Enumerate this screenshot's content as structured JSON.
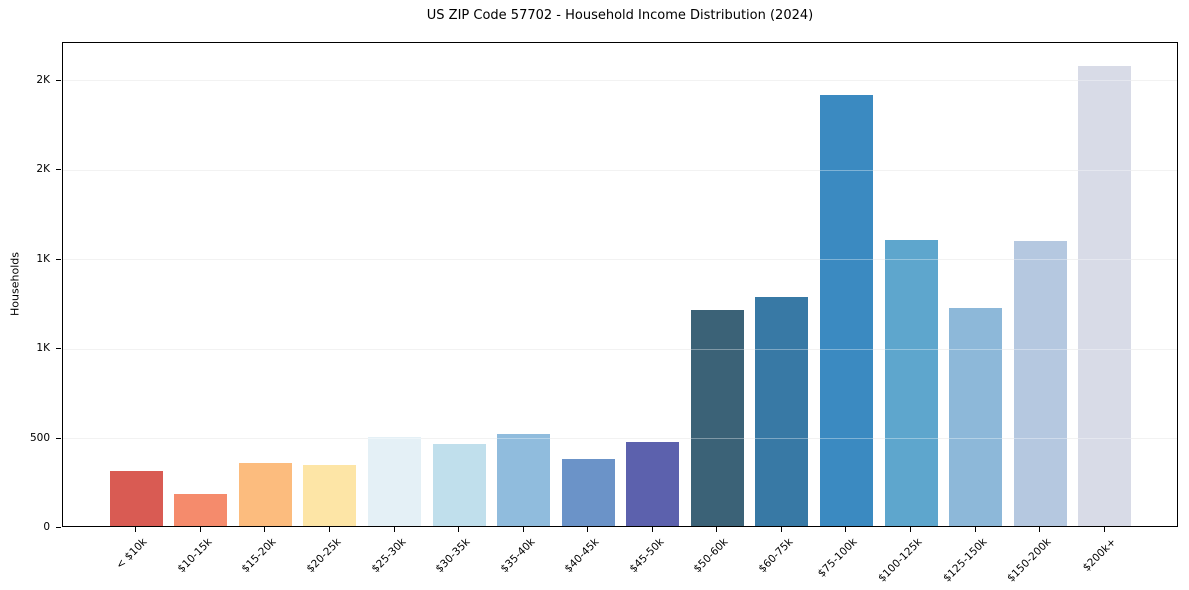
{
  "chart_data": {
    "type": "bar",
    "title": "US ZIP Code 57702 - Household Income Distribution (2024)",
    "xlabel": "",
    "ylabel": "Households",
    "categories": [
      "< $10k",
      "$10-15k",
      "$15-20k",
      "$20-25k",
      "$25-30k",
      "$30-35k",
      "$35-40k",
      "$40-45k",
      "$45-50k",
      "$50-60k",
      "$60-75k",
      "$75-100k",
      "$100-125k",
      "$125-150k",
      "$150-200k",
      "$200k+"
    ],
    "values": [
      305,
      180,
      350,
      340,
      495,
      460,
      515,
      375,
      470,
      1205,
      1280,
      2410,
      1600,
      1220,
      1590,
      2570
    ],
    "bar_colors": [
      "#d95b53",
      "#f58b6c",
      "#fcbc7e",
      "#fde5a6",
      "#e4f0f6",
      "#c0dfec",
      "#90bcdd",
      "#6b93c8",
      "#5c61ad",
      "#3b6277",
      "#3879a5",
      "#3b8ac1",
      "#5ea6cd",
      "#8db8d9",
      "#b5c8e0",
      "#d8dbe7"
    ],
    "y_ticks": [
      {
        "value": 0,
        "label": "0"
      },
      {
        "value": 500,
        "label": "500"
      },
      {
        "value": 1000,
        "label": "1K"
      },
      {
        "value": 1500,
        "label": "1K"
      },
      {
        "value": 2000,
        "label": "2K"
      },
      {
        "value": 2500,
        "label": "2K"
      }
    ],
    "ylim": [
      0,
      2710
    ],
    "grid": "horizontal",
    "grid_color": "#ebebeb",
    "spine_color": "#000000",
    "background": "#ffffff",
    "legend": "none"
  }
}
